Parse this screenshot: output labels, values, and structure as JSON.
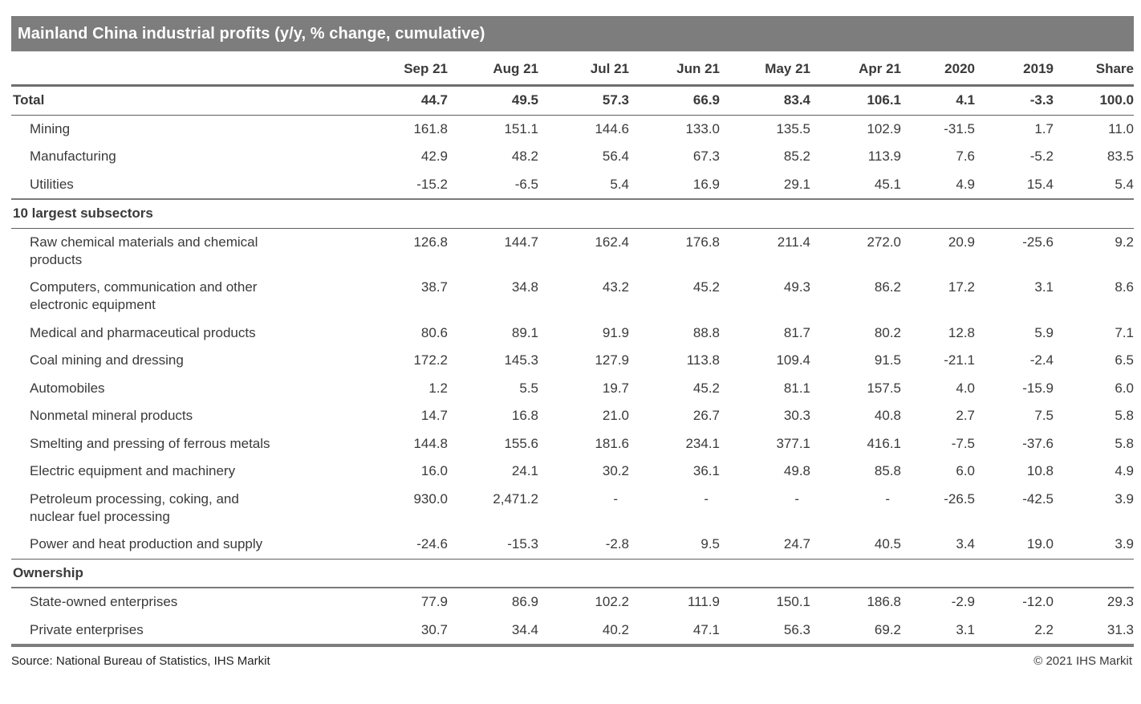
{
  "title": "Mainland China industrial profits (y/y, % change, cumulative)",
  "footer": {
    "source": "Source: National Bureau of Statistics, IHS Markit",
    "copyright": "© 2021 IHS Markit"
  },
  "colors": {
    "title_bar_background": "#7d7d7d",
    "title_text": "#ffffff",
    "body_text": "#3a3a3a",
    "rule_gray": "#6e6e6e"
  },
  "chart_data": {
    "type": "table",
    "title": "Mainland China industrial profits (y/y, % change, cumulative)",
    "columns": [
      "Sep 21",
      "Aug 21",
      "Jul 21",
      "Jun 21",
      "May 21",
      "Apr 21",
      "2020",
      "2019",
      "Share"
    ],
    "rows": [
      {
        "kind": "data",
        "label": "Total",
        "bold": true,
        "indent": false,
        "rule_below": "thin",
        "values": [
          "44.7",
          "49.5",
          "57.3",
          "66.9",
          "83.4",
          "106.1",
          "4.1",
          "-3.3",
          "100.0"
        ]
      },
      {
        "kind": "data",
        "label": "Mining",
        "bold": false,
        "indent": true,
        "rule_below": "none",
        "values": [
          "161.8",
          "151.1",
          "144.6",
          "133.0",
          "135.5",
          "102.9",
          "-31.5",
          "1.7",
          "11.0"
        ]
      },
      {
        "kind": "data",
        "label": "Manufacturing",
        "bold": false,
        "indent": true,
        "rule_below": "none",
        "values": [
          "42.9",
          "48.2",
          "56.4",
          "67.3",
          "85.2",
          "113.9",
          "7.6",
          "-5.2",
          "83.5"
        ]
      },
      {
        "kind": "data",
        "label": "Utilities",
        "bold": false,
        "indent": true,
        "rule_below": "medium",
        "values": [
          "-15.2",
          "-6.5",
          "5.4",
          "16.9",
          "29.1",
          "45.1",
          "4.9",
          "15.4",
          "5.4"
        ]
      },
      {
        "kind": "section",
        "label": "10 largest subsectors",
        "rule_below": "thin"
      },
      {
        "kind": "data",
        "label": "Raw chemical materials and chemical\nproducts",
        "bold": false,
        "indent": true,
        "rule_below": "none",
        "values": [
          "126.8",
          "144.7",
          "162.4",
          "176.8",
          "211.4",
          "272.0",
          "20.9",
          "-25.6",
          "9.2"
        ]
      },
      {
        "kind": "data",
        "label": "Computers, communication and other\nelectronic equipment",
        "bold": false,
        "indent": true,
        "rule_below": "none",
        "values": [
          "38.7",
          "34.8",
          "43.2",
          "45.2",
          "49.3",
          "86.2",
          "17.2",
          "3.1",
          "8.6"
        ]
      },
      {
        "kind": "data",
        "label": "Medical and pharmaceutical products",
        "bold": false,
        "indent": true,
        "rule_below": "none",
        "values": [
          "80.6",
          "89.1",
          "91.9",
          "88.8",
          "81.7",
          "80.2",
          "12.8",
          "5.9",
          "7.1"
        ]
      },
      {
        "kind": "data",
        "label": "Coal mining and dressing",
        "bold": false,
        "indent": true,
        "rule_below": "none",
        "values": [
          "172.2",
          "145.3",
          "127.9",
          "113.8",
          "109.4",
          "91.5",
          "-21.1",
          "-2.4",
          "6.5"
        ]
      },
      {
        "kind": "data",
        "label": "Automobiles",
        "bold": false,
        "indent": true,
        "rule_below": "none",
        "values": [
          "1.2",
          "5.5",
          "19.7",
          "45.2",
          "81.1",
          "157.5",
          "4.0",
          "-15.9",
          "6.0"
        ]
      },
      {
        "kind": "data",
        "label": "Nonmetal mineral products",
        "bold": false,
        "indent": true,
        "rule_below": "none",
        "values": [
          "14.7",
          "16.8",
          "21.0",
          "26.7",
          "30.3",
          "40.8",
          "2.7",
          "7.5",
          "5.8"
        ]
      },
      {
        "kind": "data",
        "label": "Smelting and pressing of ferrous metals",
        "bold": false,
        "indent": true,
        "rule_below": "none",
        "values": [
          "144.8",
          "155.6",
          "181.6",
          "234.1",
          "377.1",
          "416.1",
          "-7.5",
          "-37.6",
          "5.8"
        ]
      },
      {
        "kind": "data",
        "label": "Electric equipment and machinery",
        "bold": false,
        "indent": true,
        "rule_below": "none",
        "values": [
          "16.0",
          "24.1",
          "30.2",
          "36.1",
          "49.8",
          "85.8",
          "6.0",
          "10.8",
          "4.9"
        ]
      },
      {
        "kind": "data",
        "label": "Petroleum processing, coking, and\nnuclear fuel processing",
        "bold": false,
        "indent": true,
        "rule_below": "none",
        "values": [
          "930.0",
          "2,471.2",
          "-",
          "-",
          "-",
          "-",
          "-26.5",
          "-42.5",
          "3.9"
        ]
      },
      {
        "kind": "data",
        "label": "Power and heat production and supply",
        "bold": false,
        "indent": true,
        "rule_below": "thin",
        "values": [
          "-24.6",
          "-15.3",
          "-2.8",
          "9.5",
          "24.7",
          "40.5",
          "3.4",
          "19.0",
          "3.9"
        ]
      },
      {
        "kind": "section",
        "label": "Ownership",
        "rule_below": "medium"
      },
      {
        "kind": "data",
        "label": "State-owned enterprises",
        "bold": false,
        "indent": true,
        "rule_below": "none",
        "values": [
          "77.9",
          "86.9",
          "102.2",
          "111.9",
          "150.1",
          "186.8",
          "-2.9",
          "-12.0",
          "29.3"
        ]
      },
      {
        "kind": "data",
        "label": "Private enterprises",
        "bold": false,
        "indent": true,
        "rule_below": "heavy",
        "values": [
          "30.7",
          "34.4",
          "40.2",
          "47.1",
          "56.3",
          "69.2",
          "3.1",
          "2.2",
          "31.3"
        ]
      }
    ]
  }
}
